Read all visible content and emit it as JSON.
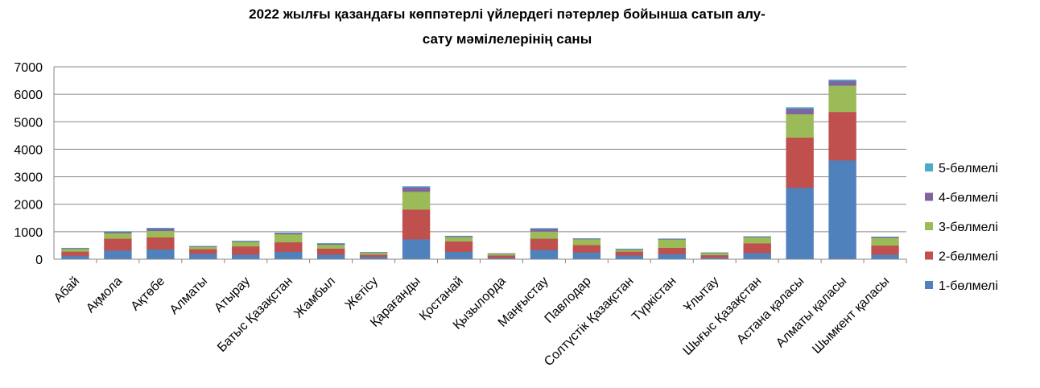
{
  "chart_data": {
    "type": "bar",
    "stacked": true,
    "title": "2022 жылғы қазандағы көппәтерлі үйлердегі пәтерлер бойынша сатып алу-сату  мәмілелерінің саны",
    "xlabel": "",
    "ylabel": "",
    "ylim": [
      0,
      7000
    ],
    "yticks": [
      "0",
      "1000",
      "2000",
      "3000",
      "4000",
      "5000",
      "6000",
      "7000"
    ],
    "grid": true,
    "legend_position": "right",
    "categories": [
      "Абай",
      "Ақмола",
      "Ақтөбе",
      "Алматы",
      "Атырау",
      "Батыс Қазақстан",
      "Жамбыл",
      "Жетісу",
      "Қарағанды",
      "Қостанай",
      "Қызылорда",
      "Маңғыстау",
      "Павлодар",
      "Солтүстік Қазақстан",
      "Түркістан",
      "Ұлытау",
      "Шығыс Қазақстан",
      "Астана қаласы",
      "Алматы қаласы",
      "Шымкент қаласы"
    ],
    "series": [
      {
        "name": "1-бөлмелі",
        "color": "#4F81BD",
        "values": [
          130,
          320,
          360,
          200,
          170,
          270,
          170,
          90,
          730,
          270,
          50,
          340,
          250,
          140,
          190,
          60,
          230,
          2600,
          3600,
          170
        ]
      },
      {
        "name": "2-бөлмелі",
        "color": "#C0504D",
        "values": [
          150,
          430,
          440,
          170,
          300,
          350,
          220,
          80,
          1080,
          380,
          90,
          410,
          270,
          140,
          230,
          90,
          350,
          1830,
          1760,
          330
        ]
      },
      {
        "name": "3-бөлмелі",
        "color": "#9BBB59",
        "values": [
          100,
          200,
          230,
          80,
          170,
          290,
          140,
          70,
          650,
          160,
          60,
          260,
          210,
          70,
          300,
          80,
          220,
          850,
          960,
          280
        ]
      },
      {
        "name": "4-бөлмелі",
        "color": "#8064A2",
        "values": [
          20,
          50,
          90,
          20,
          20,
          40,
          40,
          10,
          160,
          30,
          10,
          100,
          20,
          20,
          20,
          10,
          20,
          200,
          170,
          30
        ]
      },
      {
        "name": "5-бөлмелі",
        "color": "#4BACC6",
        "values": [
          5,
          10,
          15,
          5,
          5,
          10,
          5,
          3,
          30,
          5,
          2,
          15,
          5,
          5,
          5,
          2,
          5,
          40,
          40,
          5
        ]
      }
    ]
  }
}
